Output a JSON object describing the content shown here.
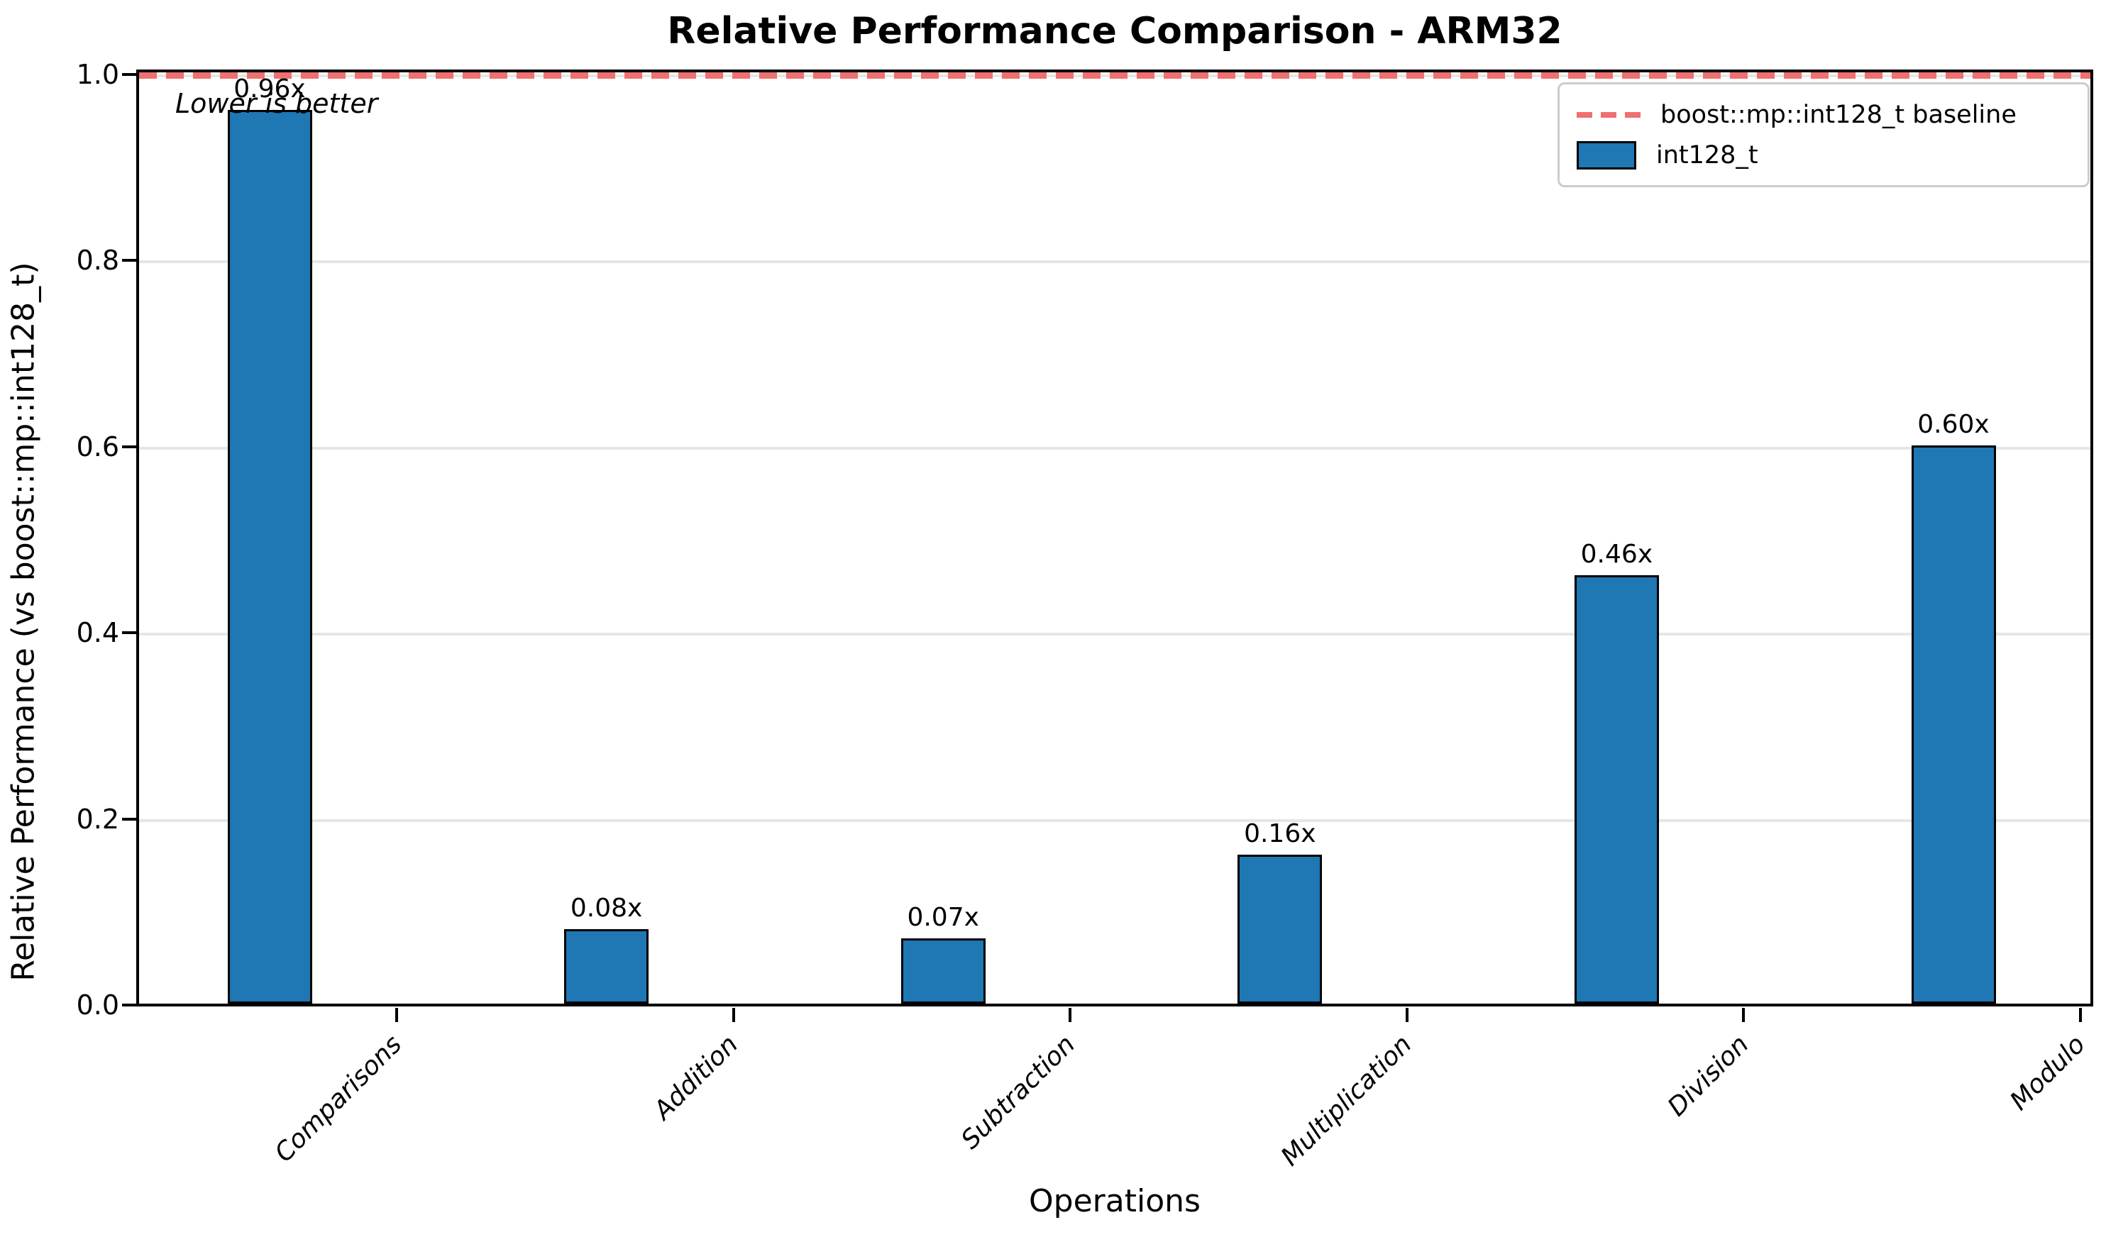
{
  "title": "Relative Performance Comparison - ARM32",
  "annotation": "Lower is better",
  "x_axis": {
    "label": "Operations",
    "tick_labels": [
      "Comparisons",
      "Addition",
      "Subtraction",
      "Multiplication",
      "Division",
      "Modulo"
    ]
  },
  "y_axis": {
    "label": "Relative Performance (vs boost::mp::int128_t)",
    "tick_labels": [
      "0.0",
      "0.2",
      "0.4",
      "0.6",
      "0.8",
      "1.0"
    ]
  },
  "legend": {
    "items": [
      {
        "label": "boost::mp::int128_t baseline",
        "marker": "dashed-line",
        "color": "#ef7070"
      },
      {
        "label": "int128_t",
        "marker": "filled-box",
        "color": "#1f77b4"
      }
    ]
  },
  "chart_data": {
    "type": "bar",
    "title": "Relative Performance Comparison - ARM32",
    "xlabel": "Operations",
    "ylabel": "Relative Performance (vs boost::mp::int128_t)",
    "categories": [
      "Comparisons",
      "Addition",
      "Subtraction",
      "Multiplication",
      "Division",
      "Modulo"
    ],
    "series": [
      {
        "name": "int128_t",
        "values": [
          0.96,
          0.08,
          0.07,
          0.16,
          0.46,
          0.6
        ]
      }
    ],
    "bar_labels": [
      "0.96x",
      "0.08x",
      "0.07x",
      "0.16x",
      "0.46x",
      "0.60x"
    ],
    "baseline": {
      "value": 1.0,
      "label": "boost::mp::int128_t baseline",
      "style": "dashed"
    },
    "annotation": "Lower is better",
    "ylim": [
      0.0,
      1.0
    ],
    "yticks": [
      0.0,
      0.2,
      0.4,
      0.6,
      0.8,
      1.0
    ],
    "grid": "horizontal",
    "legend_position": "upper right",
    "colors": {
      "bar_fill": "#1f77b4",
      "bar_edge": "#000000",
      "baseline": "#ef7070",
      "grid": "#e6e6e6"
    }
  }
}
